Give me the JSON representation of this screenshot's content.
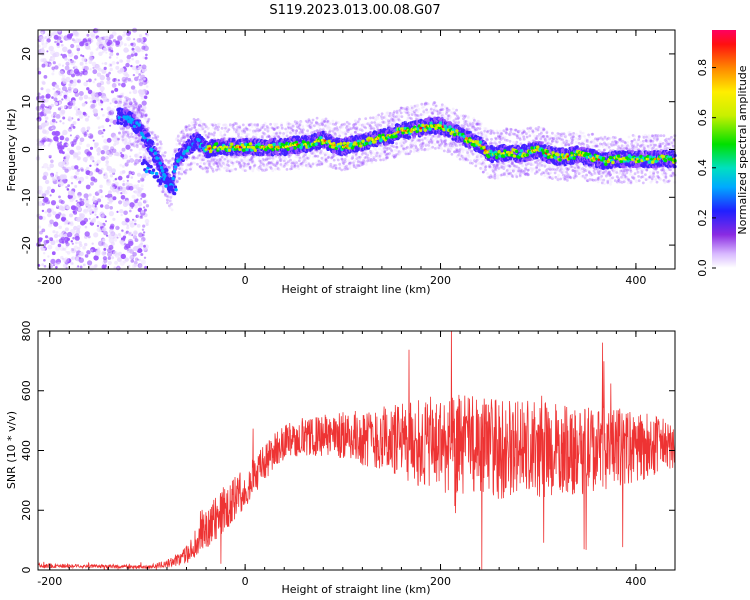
{
  "title": "S119.2023.013.00.08.G07",
  "chart_data": [
    {
      "type": "heatmap",
      "xlabel": "Height of straight line (km)",
      "ylabel": "Frequency (Hz)",
      "xlim": [
        -212,
        440
      ],
      "ylim": [
        -25,
        25
      ],
      "x_ticks": [
        -200,
        0,
        200,
        400
      ],
      "y_ticks": [
        -20,
        -10,
        0,
        10,
        20
      ],
      "colorbar": {
        "label": "Normalized spectral amplitude",
        "ticks": [
          0.0,
          0.2,
          0.4,
          0.6,
          0.8
        ],
        "range": [
          0,
          0.95
        ]
      },
      "ridge": {
        "x": [
          -130,
          -120,
          -110,
          -100,
          -95,
          -90,
          -85,
          -80,
          -75,
          -70,
          -65,
          -60,
          -55,
          -50,
          -45,
          -40,
          -30,
          -20,
          -10,
          0,
          10,
          20,
          30,
          40,
          50,
          60,
          70,
          80,
          90,
          100,
          110,
          120,
          130,
          140,
          150,
          160,
          170,
          180,
          190,
          200,
          210,
          220,
          230,
          240,
          250,
          260,
          270,
          280,
          290,
          300,
          310,
          320,
          330,
          340,
          350,
          360,
          370,
          380,
          390,
          400,
          410,
          420,
          440
        ],
        "y": [
          7,
          6.5,
          5,
          2,
          0,
          -2,
          -4,
          -6,
          -8,
          -2,
          -1,
          0,
          1,
          2,
          1,
          0,
          0.5,
          0.5,
          0.5,
          0.5,
          0.5,
          0.5,
          0.5,
          0.5,
          1,
          1,
          1.5,
          2,
          1,
          0.5,
          1,
          1.5,
          2,
          2.5,
          3,
          4,
          4,
          4.5,
          5,
          5,
          4,
          3,
          2,
          1,
          -1,
          -1,
          -0.5,
          -1,
          -0.5,
          0,
          -1,
          -1.5,
          -1.5,
          -1,
          -1.5,
          -2,
          -2.5,
          -2,
          -2,
          -2,
          -2,
          -2,
          -2
        ]
      }
    },
    {
      "type": "line",
      "xlabel": "Height of straight line (km)",
      "ylabel": "SNR (10 * v/v)",
      "xlim": [
        -212,
        440
      ],
      "ylim": [
        0,
        800
      ],
      "x_ticks": [
        -200,
        0,
        200,
        400
      ],
      "y_ticks": [
        0,
        200,
        400,
        600,
        800
      ],
      "color": "#ee3333",
      "envelope": {
        "x": [
          -212,
          -150,
          -100,
          -80,
          -60,
          -50,
          -40,
          -30,
          -20,
          -10,
          0,
          10,
          20,
          30,
          40,
          50,
          60,
          80,
          100,
          130,
          160,
          190,
          220,
          250,
          280,
          310,
          340,
          370,
          400,
          420,
          440
        ],
        "mean": [
          15,
          12,
          10,
          20,
          50,
          90,
          130,
          170,
          210,
          240,
          280,
          320,
          360,
          400,
          430,
          440,
          440,
          450,
          450,
          440,
          430,
          420,
          420,
          410,
          400,
          400,
          400,
          410,
          410,
          420,
          410
        ],
        "spread": [
          8,
          6,
          6,
          12,
          30,
          50,
          70,
          80,
          80,
          70,
          70,
          70,
          60,
          60,
          60,
          60,
          60,
          70,
          80,
          100,
          130,
          160,
          170,
          170,
          170,
          160,
          150,
          140,
          120,
          100,
          80
        ]
      }
    }
  ]
}
